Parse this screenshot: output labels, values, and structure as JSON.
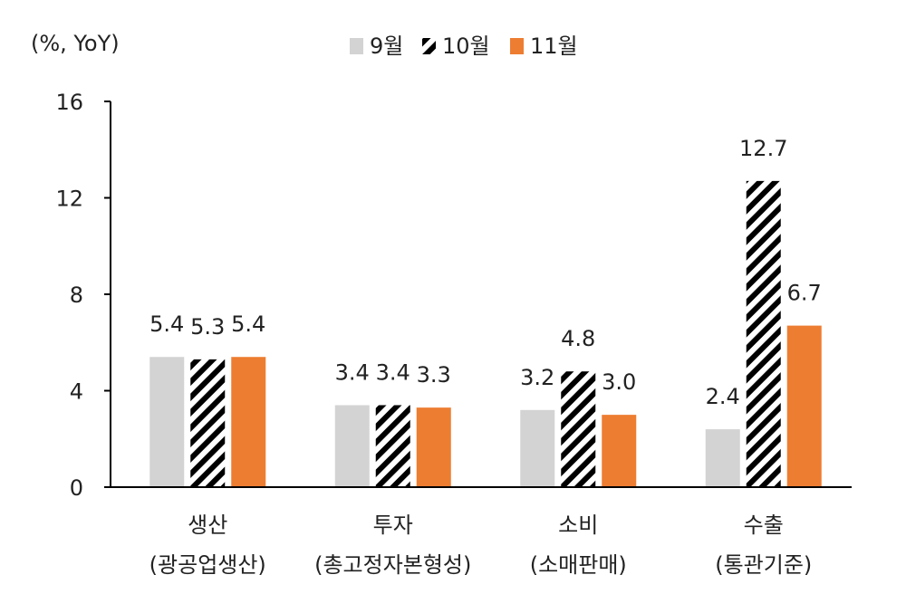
{
  "chart_data": {
    "type": "bar",
    "unit_label": "(%, YoY)",
    "categories": [
      {
        "line1": "생산",
        "line2": "(광공업생산)"
      },
      {
        "line1": "투자",
        "line2": "(총고정자본형성)"
      },
      {
        "line1": "소비",
        "line2": "(소매판매)"
      },
      {
        "line1": "수출",
        "line2": "(통관기준)"
      }
    ],
    "series": [
      {
        "name": "9월",
        "color": "#d3d3d3",
        "pattern": "solid",
        "values": [
          5.4,
          3.4,
          3.2,
          2.4
        ]
      },
      {
        "name": "10월",
        "color": "#000000",
        "pattern": "hatch",
        "values": [
          5.3,
          3.4,
          4.8,
          12.7
        ]
      },
      {
        "name": "11월",
        "color": "#ed7d31",
        "pattern": "solid",
        "values": [
          5.4,
          3.3,
          3.0,
          6.7
        ]
      }
    ],
    "data_labels": [
      [
        "5.4",
        "3.4",
        "3.2",
        "2.4"
      ],
      [
        "5.3",
        "3.4",
        "4.8",
        "12.7"
      ],
      [
        "5.4",
        "3.3",
        "3.0",
        "6.7"
      ]
    ],
    "yticks": [
      "0",
      "4",
      "8",
      "12",
      "16"
    ],
    "ylim": [
      0,
      16
    ],
    "legend_position": "top"
  }
}
